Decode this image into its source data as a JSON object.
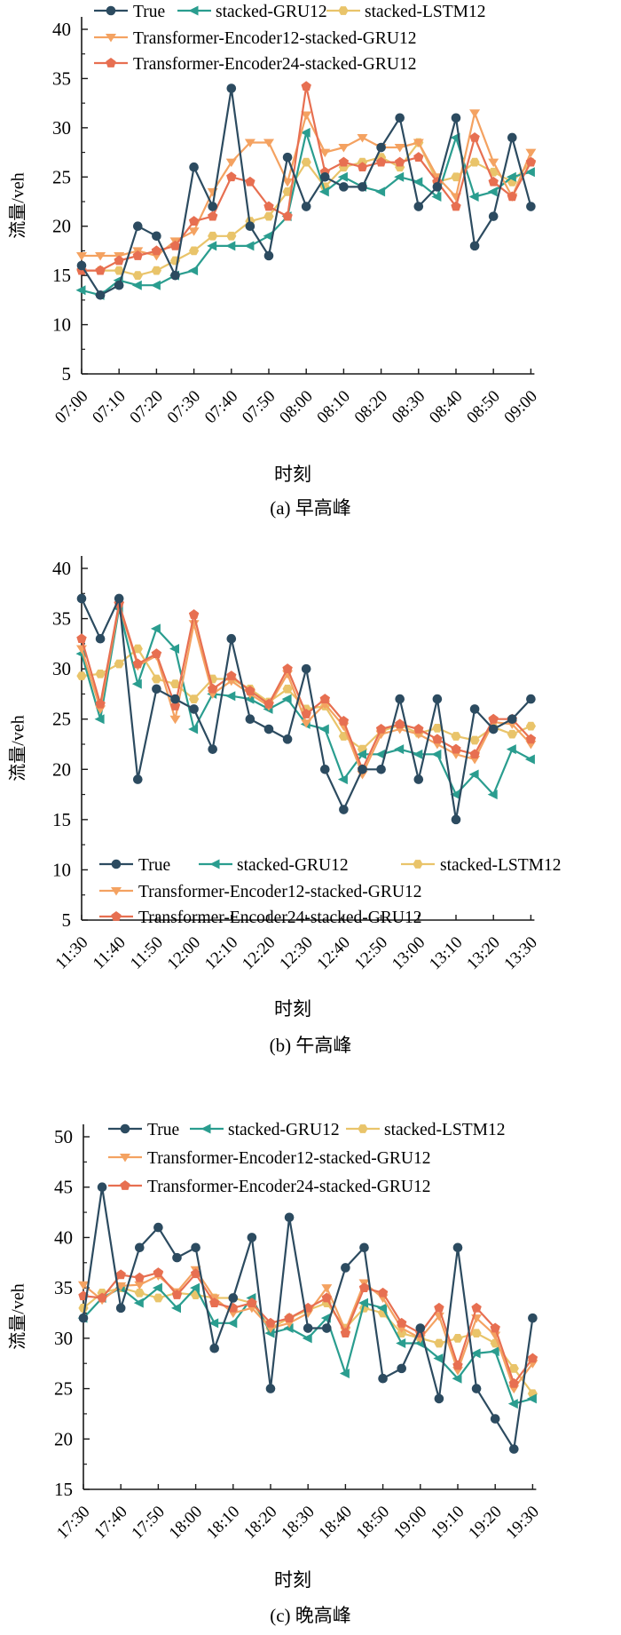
{
  "figure": {
    "ylabel": "流量/veh",
    "xlabel": "时刻",
    "legend": [
      "True",
      "stacked-GRU12",
      "stacked-LSTM12",
      "Transformer-Encoder12-stacked-GRU12",
      "Transformer-Encoder24-stacked-GRU12"
    ],
    "colors": {
      "true": "#2c4b60",
      "gru": "#2a9d8f",
      "lstm": "#e9c46a",
      "te12": "#f4a261",
      "te24": "#e76f51"
    }
  },
  "chart_data": [
    {
      "type": "line",
      "title": "(a) 早高峰",
      "xlabel": "时刻",
      "ylabel": "流量/veh",
      "x_step_minutes": 5,
      "tick_labels": [
        "07:00",
        "07:10",
        "07:20",
        "07:30",
        "07:40",
        "07:50",
        "08:00",
        "08:10",
        "08:20",
        "08:30",
        "08:40",
        "08:50",
        "09:00"
      ],
      "ylim": [
        5,
        40
      ],
      "yticks": [
        5,
        10,
        15,
        20,
        25,
        30,
        35,
        40
      ],
      "series": [
        {
          "name": "True",
          "color": "#2c4b60",
          "marker": "circle",
          "values": [
            16,
            13,
            14,
            20,
            19,
            15,
            26,
            22,
            34,
            20,
            17,
            27,
            22,
            25,
            24,
            24,
            28,
            31,
            22,
            24,
            31,
            18,
            21,
            29,
            22
          ]
        },
        {
          "name": "stacked-GRU12",
          "color": "#2a9d8f",
          "marker": "triangle-left",
          "values": [
            13.5,
            13,
            14.5,
            14,
            14,
            15,
            15.5,
            18,
            18,
            18,
            19,
            21,
            29.5,
            23.5,
            25,
            24,
            23.5,
            25,
            24.5,
            23,
            29,
            23,
            23.5,
            25,
            25.5
          ]
        },
        {
          "name": "stacked-LSTM12",
          "color": "#e9c46a",
          "marker": "hexagon",
          "values": [
            15.5,
            15.5,
            15.5,
            15,
            15.5,
            16.5,
            17.5,
            19,
            19,
            20.5,
            21,
            23.5,
            26.5,
            24,
            26,
            26.5,
            27,
            26,
            28.5,
            24.5,
            25,
            26.5,
            25.5,
            24.5,
            26.5
          ]
        },
        {
          "name": "Transformer-Encoder12-stacked-GRU12",
          "color": "#f4a261",
          "marker": "triangle-down",
          "values": [
            17,
            17,
            17,
            17.5,
            17,
            18.5,
            19.5,
            23.5,
            26.5,
            28.5,
            28.5,
            24.5,
            31.3,
            27.5,
            28,
            29,
            28,
            28,
            28.5,
            25,
            23,
            31.5,
            26.5,
            23,
            27.5
          ]
        },
        {
          "name": "Transformer-Encoder24-stacked-GRU12",
          "color": "#e76f51",
          "marker": "pentagon",
          "values": [
            15.5,
            15.5,
            16.5,
            17,
            17.5,
            18,
            20.5,
            21,
            25,
            24.5,
            22,
            21,
            34.2,
            25.5,
            26.5,
            26,
            26.5,
            26.5,
            27,
            24.5,
            22,
            29,
            24.5,
            23,
            26.5
          ]
        }
      ]
    },
    {
      "type": "line",
      "title": "(b) 午高峰",
      "xlabel": "时刻",
      "ylabel": "流量/veh",
      "x_step_minutes": 5,
      "tick_labels": [
        "11:30",
        "11:40",
        "11:50",
        "12:00",
        "12:10",
        "12:20",
        "12:30",
        "12:40",
        "12:50",
        "13:00",
        "13:10",
        "13:20",
        "13:30"
      ],
      "ylim": [
        5,
        40
      ],
      "yticks": [
        5,
        10,
        15,
        20,
        25,
        30,
        35,
        40
      ],
      "series": [
        {
          "name": "True",
          "color": "#2c4b60",
          "marker": "circle",
          "values": [
            37,
            33,
            37,
            19,
            28,
            27,
            26,
            22,
            33,
            25,
            24,
            23,
            30,
            20,
            16,
            20,
            20,
            27,
            19,
            27,
            15,
            26,
            24,
            25,
            27
          ]
        },
        {
          "name": "stacked-GRU12",
          "color": "#2a9d8f",
          "marker": "triangle-left",
          "values": [
            31.5,
            25,
            36,
            28.5,
            34,
            32,
            24,
            27.5,
            27.3,
            27,
            26,
            27,
            24.5,
            24,
            19,
            21.5,
            21.5,
            22,
            21.5,
            21.5,
            17.5,
            19.5,
            17.5,
            22,
            21
          ]
        },
        {
          "name": "stacked-LSTM12",
          "color": "#e9c46a",
          "marker": "hexagon",
          "values": [
            29.3,
            29.5,
            30.5,
            32,
            29,
            28.5,
            27,
            29,
            29,
            28,
            26.7,
            28,
            26,
            26.3,
            23.3,
            22,
            23.8,
            24.4,
            23.6,
            24.1,
            23.3,
            22.9,
            24.2,
            23.5,
            24.3
          ]
        },
        {
          "name": "Transformer-Encoder12-stacked-GRU12",
          "color": "#f4a261",
          "marker": "triangle-down",
          "values": [
            32,
            26,
            36.3,
            30.3,
            31.3,
            25,
            34.5,
            27.5,
            28.8,
            27.5,
            26.3,
            29.5,
            24.6,
            26.5,
            24.3,
            19.5,
            23.5,
            24,
            23.5,
            22.5,
            21.5,
            21,
            24.7,
            24.5,
            22.5
          ]
        },
        {
          "name": "Transformer-Encoder24-stacked-GRU12",
          "color": "#e76f51",
          "marker": "pentagon",
          "values": [
            33,
            26.5,
            36.5,
            30.5,
            31.5,
            26.3,
            35.4,
            28,
            29.3,
            27.8,
            26.5,
            30,
            25.5,
            27,
            24.8,
            20,
            24,
            24.5,
            24,
            23,
            22,
            21.5,
            25,
            25,
            23
          ]
        }
      ]
    },
    {
      "type": "line",
      "title": "(c) 晚高峰",
      "xlabel": "时刻",
      "ylabel": "流量/veh",
      "x_step_minutes": 5,
      "tick_labels": [
        "17:30",
        "17:40",
        "17:50",
        "18:00",
        "18:10",
        "18:20",
        "18:30",
        "18:40",
        "18:50",
        "19:00",
        "19:10",
        "19:20",
        "19:30"
      ],
      "ylim": [
        15,
        50
      ],
      "yticks": [
        15,
        20,
        25,
        30,
        35,
        40,
        45,
        50
      ],
      "series": [
        {
          "name": "True",
          "color": "#2c4b60",
          "marker": "circle",
          "values": [
            32,
            45,
            33,
            39,
            41,
            38,
            39,
            29,
            34,
            40,
            25,
            42,
            31,
            31,
            37,
            39,
            26,
            27,
            31,
            24,
            39,
            25,
            22,
            19,
            32
          ]
        },
        {
          "name": "stacked-GRU12",
          "color": "#2a9d8f",
          "marker": "triangle-left",
          "values": [
            32,
            34,
            35,
            33.5,
            35,
            33,
            35,
            31.5,
            31.5,
            34,
            30.5,
            31,
            30,
            32,
            26.5,
            33.5,
            33,
            29.5,
            29.5,
            28,
            26,
            28.5,
            28.7,
            23.5,
            24
          ]
        },
        {
          "name": "stacked-LSTM12",
          "color": "#e9c46a",
          "marker": "hexagon",
          "values": [
            33,
            34.5,
            35,
            34.5,
            34,
            34.5,
            34.3,
            34,
            34,
            33.5,
            31,
            32,
            32.8,
            33.5,
            31,
            33,
            32.5,
            30.5,
            30,
            29.5,
            30,
            30.5,
            29.5,
            27,
            24.5
          ]
        },
        {
          "name": "Transformer-Encoder12-stacked-GRU12",
          "color": "#f4a261",
          "marker": "triangle-down",
          "values": [
            35.3,
            33.8,
            35.2,
            35.3,
            36.2,
            34.6,
            36.8,
            34,
            32.5,
            33,
            31,
            31.5,
            32.5,
            35,
            30.8,
            35.5,
            34,
            31,
            30,
            32.2,
            26.8,
            32,
            30.3,
            25,
            27.5
          ]
        },
        {
          "name": "Transformer-Encoder24-stacked-GRU12",
          "color": "#e76f51",
          "marker": "pentagon",
          "values": [
            34.2,
            34,
            36.3,
            36,
            36.5,
            34.3,
            36.4,
            33.5,
            33,
            33.5,
            31.5,
            32,
            33,
            34,
            30.5,
            35,
            34.5,
            31.5,
            30.5,
            33,
            27.3,
            33,
            31,
            25.5,
            28
          ]
        }
      ]
    }
  ]
}
